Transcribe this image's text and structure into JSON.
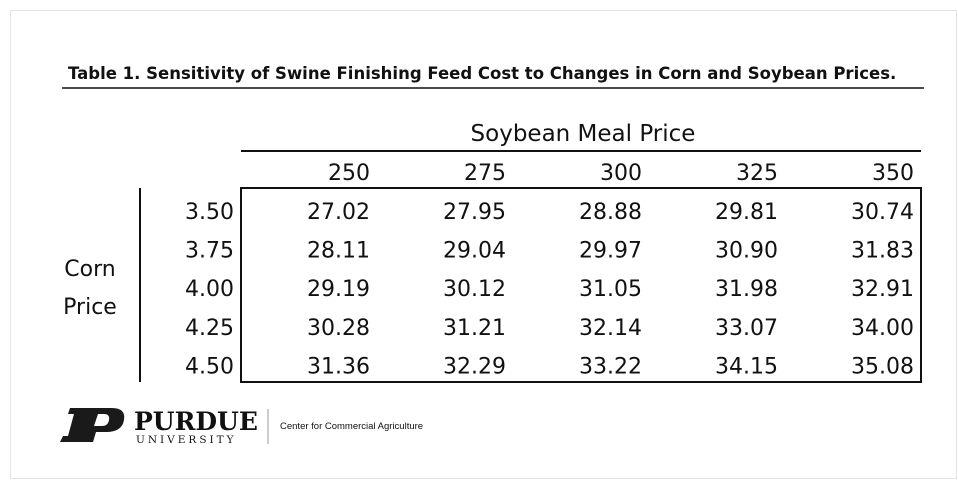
{
  "table": {
    "title": "Table 1.  Sensitivity of Swine Finishing Feed Cost to Changes in Corn and Soybean Prices.",
    "column_group": "Soybean Meal Price",
    "row_group": [
      "Corn",
      "Price"
    ],
    "columns": [
      "250",
      "275",
      "300",
      "325",
      "350"
    ],
    "rows": [
      {
        "label": "3.50",
        "values": [
          "27.02",
          "27.95",
          "28.88",
          "29.81",
          "30.74"
        ]
      },
      {
        "label": "3.75",
        "values": [
          "28.11",
          "29.04",
          "29.97",
          "30.90",
          "31.83"
        ]
      },
      {
        "label": "4.00",
        "values": [
          "29.19",
          "30.12",
          "31.05",
          "31.98",
          "32.91"
        ]
      },
      {
        "label": "4.25",
        "values": [
          "30.28",
          "31.21",
          "32.14",
          "33.07",
          "34.00"
        ]
      },
      {
        "label": "4.50",
        "values": [
          "31.36",
          "32.29",
          "33.22",
          "34.15",
          "35.08"
        ]
      }
    ]
  },
  "footer": {
    "logo_name": "PURDUE",
    "logo_sub": "UNIVERSITY",
    "unit": "Center for Commercial Agriculture"
  }
}
